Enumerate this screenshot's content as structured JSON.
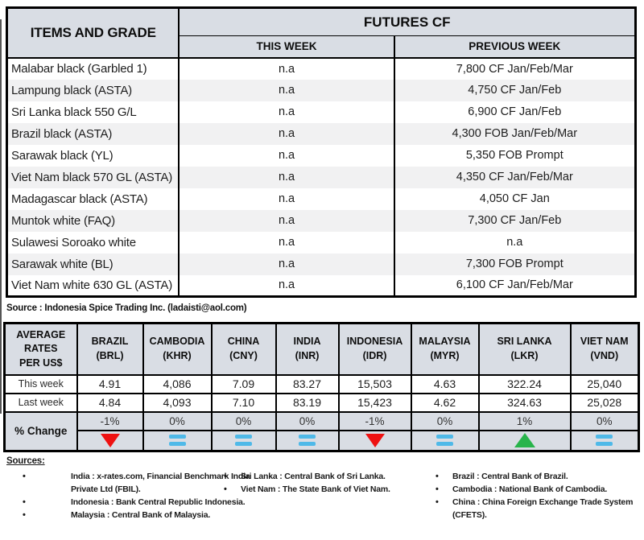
{
  "futures_table": {
    "header": {
      "items_and_grade": "ITEMS AND GRADE",
      "futures_cf": "FUTURES CF",
      "this_week": "THIS WEEK",
      "previous_week": "PREVIOUS WEEK"
    },
    "rows": [
      {
        "item": "Malabar black (Garbled 1)",
        "this_week": "n.a",
        "previous_week": "7,800 CF Jan/Feb/Mar"
      },
      {
        "item": "Lampung black (ASTA)",
        "this_week": "n.a",
        "previous_week": "4,750 CF Jan/Feb"
      },
      {
        "item": "Sri Lanka black 550 G/L",
        "this_week": "n.a",
        "previous_week": "6,900 CF Jan/Feb"
      },
      {
        "item": "Brazil black (ASTA)",
        "this_week": "n.a",
        "previous_week": "4,300 FOB Jan/Feb/Mar"
      },
      {
        "item": "Sarawak black (YL)",
        "this_week": "n.a",
        "previous_week": "5,350 FOB Prompt"
      },
      {
        "item": "Viet Nam black 570 GL (ASTA)",
        "this_week": "n.a",
        "previous_week": "4,350 CF Jan/Feb/Mar"
      },
      {
        "item": "Madagascar black (ASTA)",
        "this_week": "n.a",
        "previous_week": "4,050 CF Jan"
      },
      {
        "item": "Muntok white (FAQ)",
        "this_week": "n.a",
        "previous_week": "7,300 CF Jan/Feb"
      },
      {
        "item": "Sulawesi Soroako white",
        "this_week": "n.a",
        "previous_week": "n.a"
      },
      {
        "item": "Sarawak  white (BL)",
        "this_week": "n.a",
        "previous_week": "7,300 FOB Prompt"
      },
      {
        "item": "Viet Nam white 630 GL (ASTA)",
        "this_week": "n.a",
        "previous_week": "6,100 CF Jan/Feb/Mar"
      }
    ],
    "source": "Source : Indonesia Spice Trading Inc. (ladaisti@aol.com)"
  },
  "rates_table": {
    "corner_label": "AVERAGE\nRATES\nPER US$",
    "row_labels": {
      "this_week": "This week",
      "last_week": "Last week",
      "pct_change": "% Change"
    },
    "currencies": [
      {
        "country": "BRAZIL",
        "code": "(BRL)",
        "this_week": "4.91",
        "last_week": "4.84",
        "pct_change": "-1%",
        "trend": "down"
      },
      {
        "country": "CAMBODIA",
        "code": "(KHR)",
        "this_week": "4,086",
        "last_week": "4,093",
        "pct_change": "0%",
        "trend": "flat"
      },
      {
        "country": "CHINA",
        "code": "(CNY)",
        "this_week": "7.09",
        "last_week": "7.10",
        "pct_change": "0%",
        "trend": "flat"
      },
      {
        "country": "INDIA",
        "code": "(INR)",
        "this_week": "83.27",
        "last_week": "83.19",
        "pct_change": "0%",
        "trend": "flat"
      },
      {
        "country": "INDONESIA",
        "code": "(IDR)",
        "this_week": "15,503",
        "last_week": "15,423",
        "pct_change": "-1%",
        "trend": "down"
      },
      {
        "country": "MALAYSIA",
        "code": "(MYR)",
        "this_week": "4.63",
        "last_week": "4.62",
        "pct_change": "0%",
        "trend": "flat"
      },
      {
        "country": "SRI LANKA",
        "code": "(LKR)",
        "this_week": "322.24",
        "last_week": "324.63",
        "pct_change": "1%",
        "trend": "up"
      },
      {
        "country": "VIET NAM",
        "code": "(VND)",
        "this_week": "25,040",
        "last_week": "25,028",
        "pct_change": "0%",
        "trend": "flat"
      }
    ],
    "trend_icons": {
      "down": "red-down-triangle-icon",
      "up": "green-up-triangle-icon",
      "flat": "blue-equals-icon"
    }
  },
  "sources": {
    "title": "Sources:",
    "columns": [
      {
        "items": [
          "India : x-rates.com, Financial Benchmark India\nPrivate Ltd (FBIL).",
          "Indonesia : Bank Central Republic Indonesia.",
          "Malaysia : Central Bank of Malaysia."
        ]
      },
      {
        "items": [
          "Sri Lanka : Central Bank of Sri Lanka.",
          "Viet Nam : The State Bank of Viet Nam."
        ]
      },
      {
        "items": [
          "Brazil :  Central Bank of Brazil.",
          "Cambodia : National Bank of Cambodia.",
          "China : China Foreign Exchange Trade System\n(CFETS)."
        ]
      }
    ]
  },
  "colors": {
    "header_bg": "#D9DDE4",
    "stripe_bg": "#F1F1F2",
    "down": "#EE1111",
    "up": "#28B44B",
    "flat": "#4FB9E8"
  }
}
